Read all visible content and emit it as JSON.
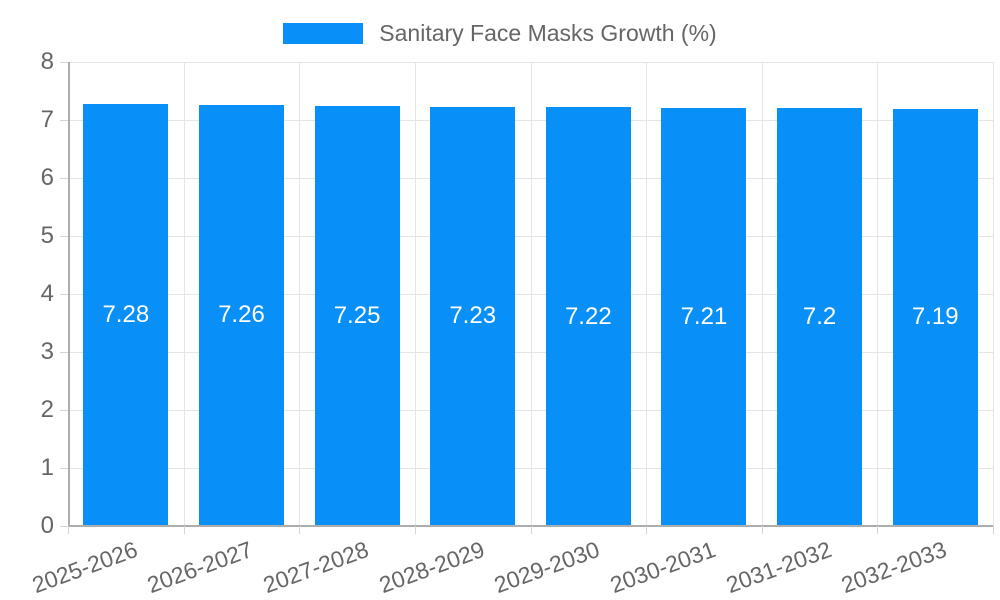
{
  "legend": {
    "label": "Sanitary Face Masks Growth (%)"
  },
  "chart_data": {
    "type": "bar",
    "title": "Sanitary Face Masks Growth (%)",
    "categories": [
      "2025-2026",
      "2026-2027",
      "2027-2028",
      "2028-2029",
      "2029-2030",
      "2030-2031",
      "2031-2032",
      "2032-2033"
    ],
    "series": [
      {
        "name": "Sanitary Face Masks Growth (%)",
        "values": [
          7.28,
          7.26,
          7.25,
          7.23,
          7.22,
          7.21,
          7.2,
          7.19
        ]
      }
    ],
    "bar_value_labels": [
      "7.28",
      "7.26",
      "7.25",
      "7.23",
      "7.22",
      "7.21",
      "7.2",
      "7.19"
    ],
    "xlabel": "",
    "ylabel": "",
    "ylim": [
      0,
      8
    ],
    "yticks": [
      0,
      1,
      2,
      3,
      4,
      5,
      6,
      7,
      8
    ],
    "grid": true,
    "legend_position": "top",
    "colors": {
      "bar": "#0890f8",
      "bar_label": "#ffffff",
      "axis_text": "#666666",
      "gridline": "#e5e5e5",
      "axis_line": "#adadad",
      "tick": "#d4d4d4",
      "background": "#ffffff"
    }
  }
}
